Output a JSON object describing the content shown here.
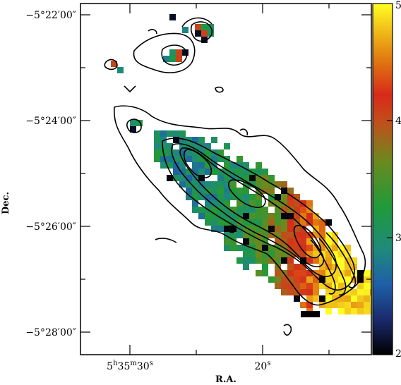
{
  "chart_data": {
    "type": "heatmap",
    "title": "",
    "xlabel": "R.A.",
    "ylabel": "Dec.",
    "x_ticks": [
      {
        "h": "5",
        "hs": "h",
        "m": "35",
        "ms": "m",
        "s": "30",
        "ss": "s",
        "value_s": 30
      },
      {
        "s": "20",
        "ss": "s",
        "value_s": 20
      }
    ],
    "y_ticks": [
      {
        "label": "−5°22′00″",
        "value_min": -22
      },
      {
        "label": "−5°24′00″",
        "value_min": -24
      },
      {
        "label": "−5°26′00″",
        "value_min": -26
      },
      {
        "label": "−5°28′00″",
        "value_min": -28
      }
    ],
    "colorbar": {
      "range": [
        2,
        5
      ],
      "ticks": [
        "2",
        "3",
        "4",
        "5"
      ],
      "colormap": [
        "#000000",
        "#1a2a6c",
        "#1e5fa8",
        "#1f8a7a",
        "#1f9a3a",
        "#6a8a1e",
        "#c0501a",
        "#d82a1a",
        "#e07a10",
        "#f2c21a",
        "#ffff22"
      ]
    },
    "ridge_profile": [
      {
        "ra_s": 29.0,
        "value": 3.0
      },
      {
        "ra_s": 27.0,
        "value": 2.85
      },
      {
        "ra_s": 25.0,
        "value": 2.95
      },
      {
        "ra_s": 23.0,
        "value": 3.05
      },
      {
        "ra_s": 21.0,
        "value": 3.2
      },
      {
        "ra_s": 19.0,
        "value": 3.6
      },
      {
        "ra_s": 17.0,
        "value": 4.2
      },
      {
        "ra_s": 15.0,
        "value": 4.8
      }
    ],
    "grid": false
  }
}
